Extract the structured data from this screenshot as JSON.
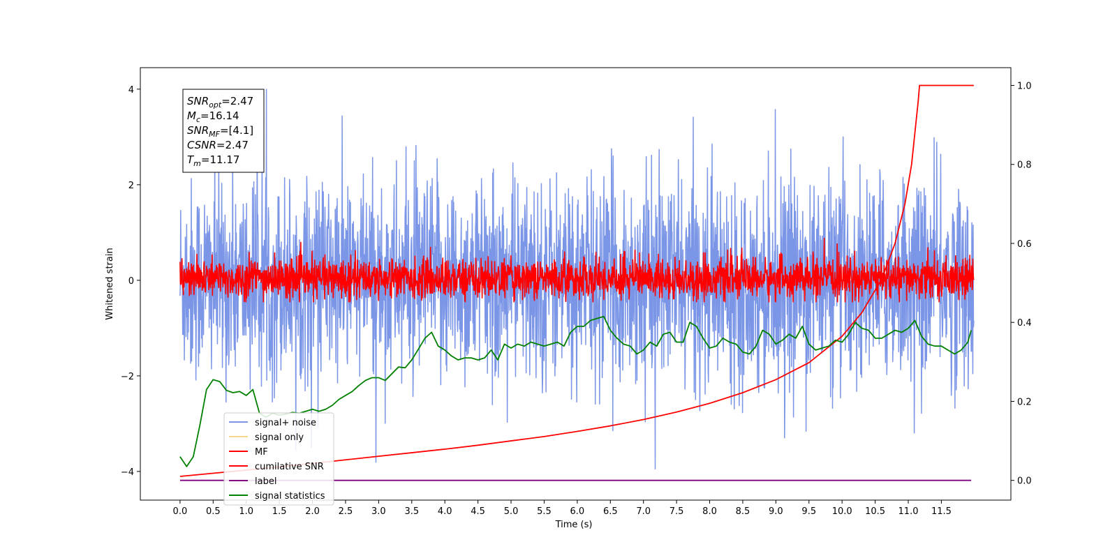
{
  "chart_data": {
    "type": "line",
    "xlabel": "Time (s)",
    "ylabel_left": "Whitened strain",
    "ylabel_right": "",
    "xlim": [
      -0.6,
      12.55
    ],
    "ylim_left": [
      -4.6,
      4.45
    ],
    "ylim_right": [
      -0.05,
      1.045
    ],
    "x_ticks": [
      "0.0",
      "0.5",
      "1.0",
      "1.5",
      "2.0",
      "2.5",
      "3.0",
      "3.5",
      "4.0",
      "4.5",
      "5.0",
      "5.5",
      "6.0",
      "6.5",
      "7.0",
      "7.5",
      "8.0",
      "8.5",
      "9.0",
      "9.5",
      "10.0",
      "10.5",
      "11.0",
      "11.5"
    ],
    "y_ticks_left": [
      "4",
      "2",
      "0",
      "−2",
      "−4"
    ],
    "y_ticks_right": [
      "1.0",
      "0.8",
      "0.6",
      "0.4",
      "0.2",
      "0.0"
    ],
    "grid": false,
    "legend_position": "lower-left",
    "legend": [
      {
        "label": "signal+ noise",
        "color": "#7b96e6"
      },
      {
        "label": "signal only",
        "color": "#f8d68c"
      },
      {
        "label": "MF",
        "color": "#ff0000"
      },
      {
        "label": "cumilative SNR",
        "color": "#ff0000"
      },
      {
        "label": "label",
        "color": "#800080"
      },
      {
        "label": "signal statistics",
        "color": "#008000"
      }
    ],
    "series": [
      {
        "name": "signal+ noise",
        "axis": "left",
        "color": "#7b96e6",
        "x_range": [
          0,
          11.99
        ],
        "y_range": [
          -4.1,
          4.05
        ],
        "samples": 2400,
        "note_values": "dense noise centred near 0 with std about 1"
      },
      {
        "name": "MF",
        "axis": "left",
        "color": "#ff0000",
        "x_range": [
          0,
          11.99
        ],
        "y_range": [
          -0.45,
          1.0
        ],
        "samples": 2400
      },
      {
        "name": "cumilative SNR",
        "axis": "right",
        "color": "#ff0000",
        "x": [
          0.0,
          0.5,
          1.0,
          1.5,
          2.0,
          2.5,
          3.0,
          3.5,
          4.0,
          4.5,
          5.0,
          5.5,
          6.0,
          6.5,
          7.0,
          7.5,
          8.0,
          8.5,
          9.0,
          9.5,
          10.0,
          10.3,
          10.6,
          10.8,
          10.95,
          11.05,
          11.1,
          11.15,
          11.17,
          11.99
        ],
        "y": [
          0.01,
          0.018,
          0.026,
          0.034,
          0.043,
          0.052,
          0.061,
          0.07,
          0.079,
          0.089,
          0.1,
          0.111,
          0.124,
          0.138,
          0.154,
          0.173,
          0.195,
          0.222,
          0.255,
          0.298,
          0.365,
          0.425,
          0.51,
          0.6,
          0.7,
          0.8,
          0.88,
          0.96,
          1.0,
          1.0
        ]
      },
      {
        "name": "label",
        "axis": "right",
        "color": "#800080",
        "x": [
          0.0,
          11.95
        ],
        "y": [
          0.0,
          0.0
        ]
      },
      {
        "name": "signal statistics",
        "axis": "right",
        "color": "#008000",
        "x": [
          0.0,
          0.1,
          0.2,
          0.3,
          0.4,
          0.5,
          0.6,
          0.7,
          0.8,
          0.9,
          1.0,
          1.1,
          1.2,
          1.3,
          1.4,
          1.5,
          1.6,
          1.7,
          1.8,
          1.9,
          2.0,
          2.1,
          2.2,
          2.3,
          2.4,
          2.5,
          2.6,
          2.7,
          2.8,
          2.9,
          3.0,
          3.1,
          3.2,
          3.3,
          3.4,
          3.5,
          3.6,
          3.7,
          3.8,
          3.9,
          4.0,
          4.1,
          4.2,
          4.3,
          4.4,
          4.5,
          4.6,
          4.7,
          4.8,
          4.9,
          5.0,
          5.1,
          5.2,
          5.3,
          5.4,
          5.5,
          5.6,
          5.7,
          5.8,
          5.9,
          6.0,
          6.1,
          6.2,
          6.3,
          6.4,
          6.5,
          6.6,
          6.7,
          6.8,
          6.9,
          7.0,
          7.1,
          7.2,
          7.3,
          7.4,
          7.5,
          7.6,
          7.7,
          7.8,
          7.9,
          8.0,
          8.1,
          8.2,
          8.3,
          8.4,
          8.5,
          8.6,
          8.7,
          8.8,
          8.9,
          9.0,
          9.1,
          9.2,
          9.3,
          9.4,
          9.5,
          9.6,
          9.7,
          9.8,
          9.9,
          10.0,
          10.1,
          10.2,
          10.3,
          10.4,
          10.5,
          10.6,
          10.7,
          10.8,
          10.9,
          11.0,
          11.1,
          11.2,
          11.3,
          11.4,
          11.5,
          11.6,
          11.7,
          11.8,
          11.9,
          11.95
        ],
        "y": [
          0.06,
          0.035,
          0.06,
          0.14,
          0.23,
          0.255,
          0.25,
          0.228,
          0.222,
          0.225,
          0.215,
          0.23,
          0.17,
          0.16,
          0.17,
          0.165,
          0.168,
          0.172,
          0.17,
          0.175,
          0.18,
          0.175,
          0.18,
          0.19,
          0.205,
          0.215,
          0.225,
          0.24,
          0.253,
          0.26,
          0.26,
          0.253,
          0.27,
          0.287,
          0.285,
          0.305,
          0.332,
          0.36,
          0.375,
          0.34,
          0.33,
          0.315,
          0.305,
          0.31,
          0.31,
          0.305,
          0.31,
          0.33,
          0.305,
          0.345,
          0.335,
          0.345,
          0.34,
          0.35,
          0.345,
          0.34,
          0.345,
          0.35,
          0.34,
          0.375,
          0.39,
          0.39,
          0.405,
          0.41,
          0.415,
          0.38,
          0.36,
          0.345,
          0.34,
          0.32,
          0.33,
          0.35,
          0.34,
          0.37,
          0.375,
          0.35,
          0.35,
          0.4,
          0.39,
          0.36,
          0.335,
          0.34,
          0.36,
          0.35,
          0.345,
          0.325,
          0.32,
          0.34,
          0.38,
          0.37,
          0.345,
          0.355,
          0.37,
          0.36,
          0.39,
          0.345,
          0.33,
          0.335,
          0.34,
          0.355,
          0.35,
          0.37,
          0.4,
          0.385,
          0.38,
          0.36,
          0.36,
          0.37,
          0.38,
          0.375,
          0.385,
          0.405,
          0.365,
          0.345,
          0.34,
          0.34,
          0.33,
          0.32,
          0.33,
          0.35,
          0.38
        ]
      }
    ],
    "annotation_box": {
      "lines": [
        {
          "base": "SNR",
          "sub": "opt",
          "value": "=2.47"
        },
        {
          "base": "M",
          "sub": "c",
          "value": "=16.14"
        },
        {
          "base": "SNR",
          "sub": "MF",
          "value": "=[4.1]"
        },
        {
          "base": "CSNR",
          "sub": "",
          "value": "=2.47"
        },
        {
          "base": "T",
          "sub": "m",
          "value": "=11.17"
        }
      ]
    }
  }
}
